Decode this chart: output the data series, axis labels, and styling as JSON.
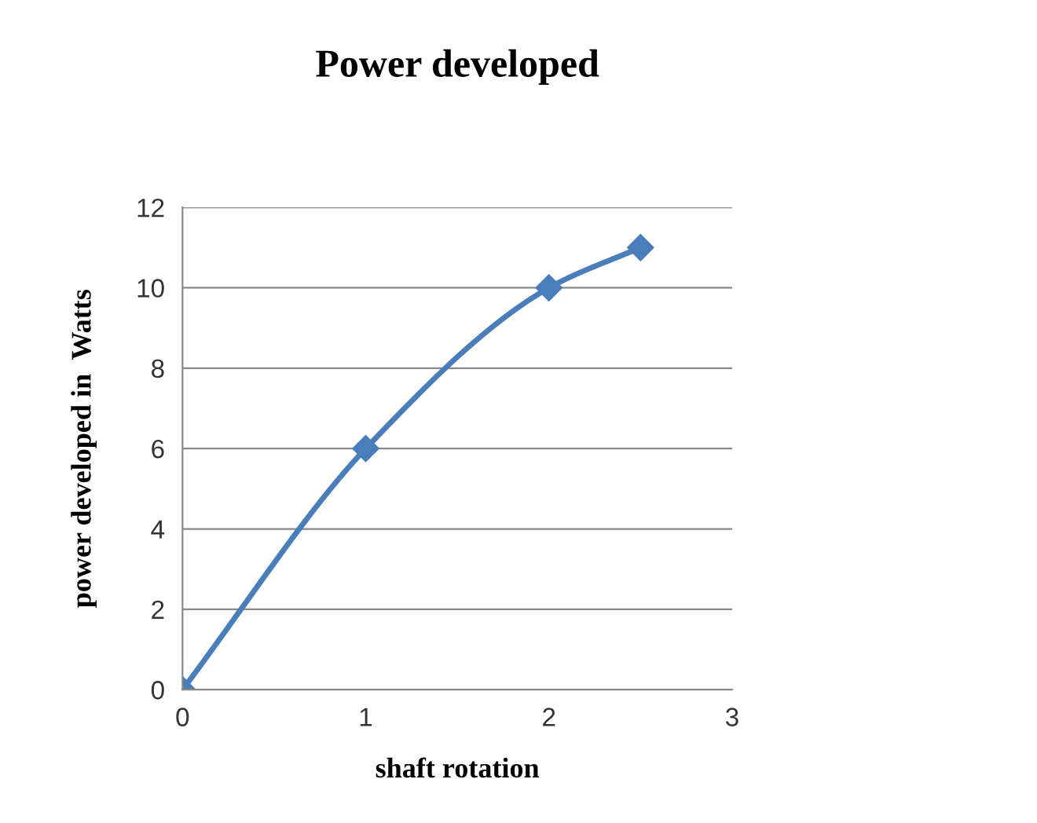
{
  "chart_data": {
    "type": "line",
    "title": "Power developed",
    "xlabel": "shaft rotation",
    "ylabel": "power developed in  Watts",
    "x": [
      0,
      1,
      2,
      2.5
    ],
    "series": [
      {
        "color": "#4a7ebb",
        "values": [
          0,
          6,
          10,
          11
        ]
      }
    ],
    "xlim": [
      0,
      3
    ],
    "xticks": [
      0,
      1,
      2,
      3
    ],
    "ylim": [
      0,
      12
    ],
    "yticks": [
      0,
      2,
      4,
      6,
      8,
      10,
      12
    ],
    "grid": "y",
    "marker": "diamond",
    "line_style": "solid"
  }
}
